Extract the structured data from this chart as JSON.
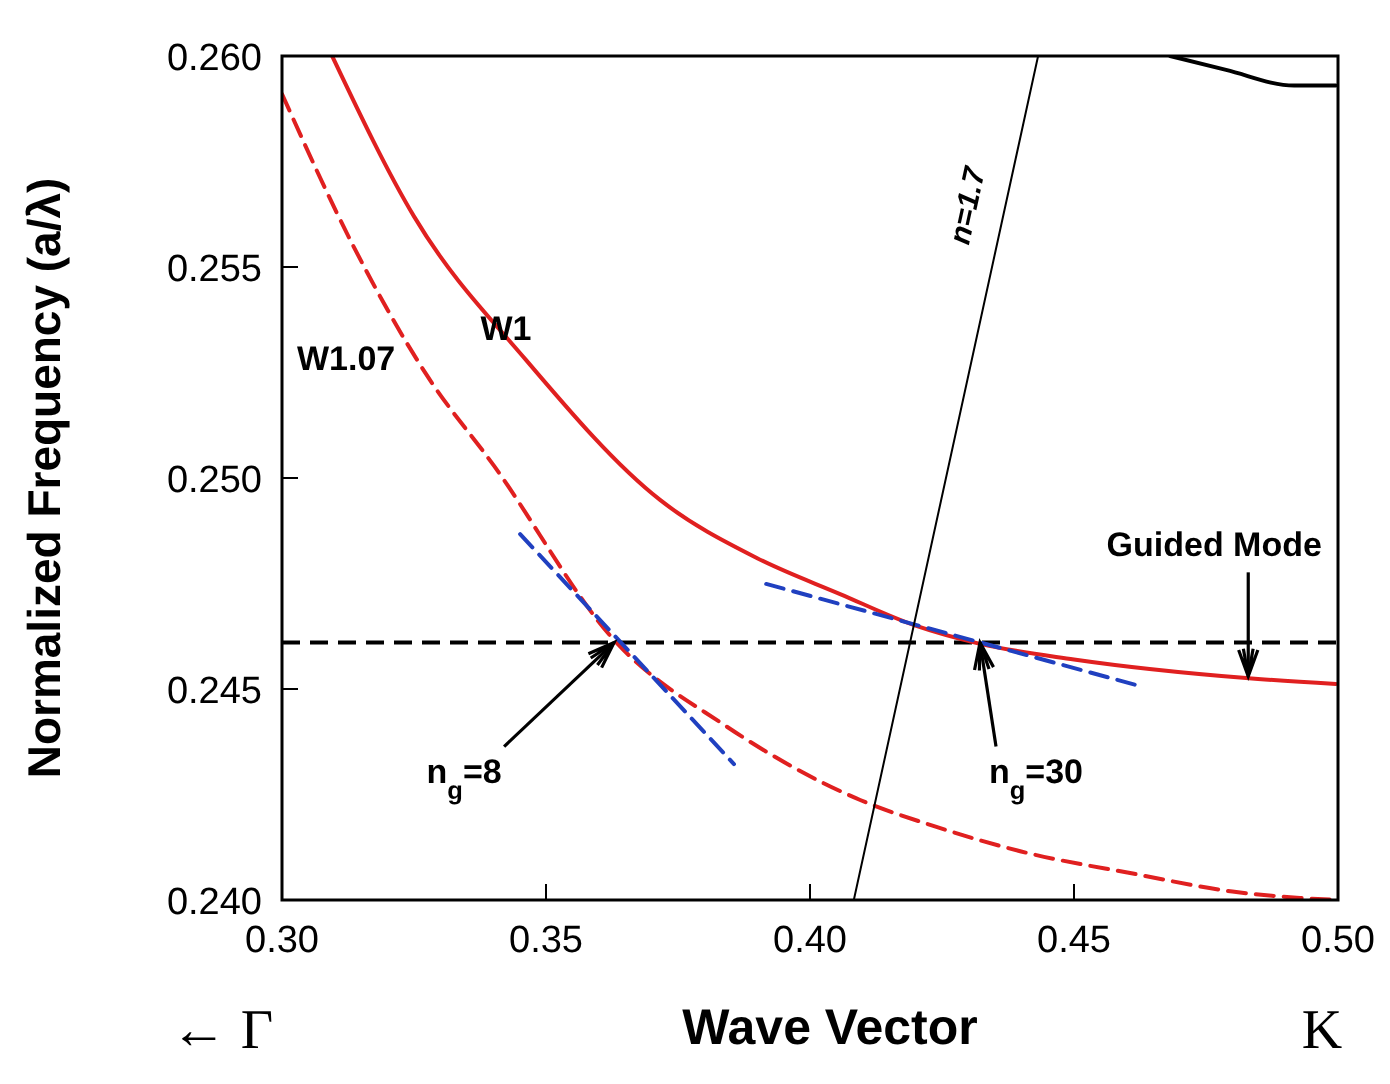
{
  "chart_data": {
    "type": "line",
    "xlabel": "Wave Vector",
    "ylabel": "Normalized Frequency (a/λ)",
    "xlim": [
      0.3,
      0.5
    ],
    "xticks": [
      {
        "value": 0.3,
        "label": "0.30"
      },
      {
        "value": 0.35,
        "label": "0.35"
      },
      {
        "value": 0.4,
        "label": "0.40"
      },
      {
        "value": 0.45,
        "label": "0.45"
      },
      {
        "value": 0.5,
        "label": "0.50"
      }
    ],
    "ylim": [
      0.24,
      0.26
    ],
    "yticks": [
      {
        "value": 0.24,
        "label": "0.240"
      },
      {
        "value": 0.245,
        "label": "0.245"
      },
      {
        "value": 0.25,
        "label": "0.250"
      },
      {
        "value": 0.255,
        "label": "0.255"
      },
      {
        "value": 0.26,
        "label": "0.260"
      }
    ],
    "grid": false,
    "marker": "none",
    "series": [
      {
        "name": "W1",
        "color": "#e02020",
        "line_style": "solid",
        "x": [
          0.3095,
          0.325,
          0.3462,
          0.3716,
          0.39,
          0.4057,
          0.42,
          0.4322,
          0.45,
          0.4826,
          0.4996
        ],
        "values": [
          0.26,
          0.2562,
          0.2528,
          0.24948,
          0.2481,
          0.24725,
          0.2465,
          0.24607,
          0.2457,
          0.24526,
          0.24512
        ]
      },
      {
        "name": "W1.07",
        "color": "#e02020",
        "line_style": "dashed",
        "x": [
          0.3,
          0.3135,
          0.3273,
          0.3402,
          0.3629,
          0.3841,
          0.4095,
          0.4235,
          0.44,
          0.4614,
          0.48,
          0.4928,
          0.5
        ],
        "values": [
          0.2591,
          0.2555,
          0.25246,
          0.25028,
          0.24616,
          0.24412,
          0.24237,
          0.24175,
          0.24115,
          0.24062,
          0.2402,
          0.24005,
          0.24
        ]
      },
      {
        "color": "#2040c0",
        "line_style": "dashed",
        "x": [
          0.3451,
          0.3856
        ],
        "values": [
          0.24867,
          0.24322
        ]
      },
      {
        "color": "#2040c0",
        "line_style": "dashed",
        "x": [
          0.3917,
          0.4625
        ],
        "values": [
          0.24749,
          0.24507
        ]
      },
      {
        "name": "n=1.7",
        "color": "#000000",
        "line_style": "solid",
        "x": [
          0.4083,
          0.4432
        ],
        "values": [
          0.24,
          0.26
        ]
      },
      {
        "color": "#000000",
        "line_style": "solid",
        "x": [
          0.4682,
          0.4788,
          0.4917,
          0.4996
        ],
        "values": [
          0.26,
          0.25967,
          0.2593,
          0.2593
        ]
      }
    ],
    "ref_lines": [
      {
        "axis": "y",
        "value": 0.2461,
        "color": "#000000",
        "line_style": "dashed"
      }
    ],
    "annotations": [
      {
        "text": "n$_{g}$=8",
        "x": 0.3629,
        "y": 0.2461
      },
      {
        "text": "n$_{g}$=30",
        "x": 0.4322,
        "y": 0.2461
      },
      {
        "text": "Guided Mode",
        "x": 0.483,
        "y": 0.2453
      },
      "← Γ",
      "K"
    ]
  }
}
